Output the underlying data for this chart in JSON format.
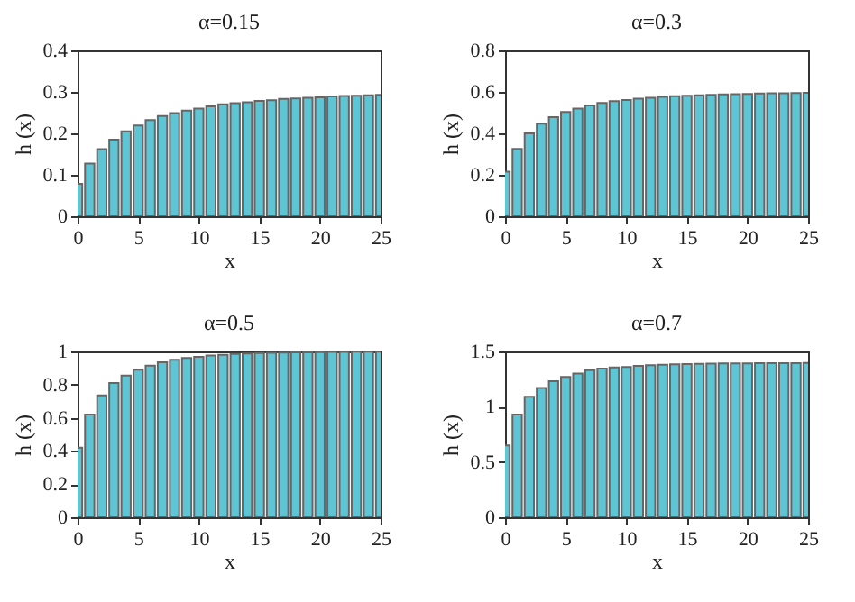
{
  "chart_data": [
    {
      "type": "bar",
      "title": "α=0.15",
      "xlabel": "x",
      "ylabel": "h (x)",
      "x": [
        0,
        1,
        2,
        3,
        4,
        5,
        6,
        7,
        8,
        9,
        10,
        11,
        12,
        13,
        14,
        15,
        16,
        17,
        18,
        19,
        20,
        21,
        22,
        23,
        24,
        25
      ],
      "values": [
        0.078,
        0.127,
        0.162,
        0.185,
        0.205,
        0.219,
        0.232,
        0.242,
        0.249,
        0.255,
        0.26,
        0.265,
        0.27,
        0.273,
        0.275,
        0.278,
        0.28,
        0.283,
        0.284,
        0.286,
        0.287,
        0.289,
        0.29,
        0.291,
        0.292,
        0.293
      ],
      "color": "#5ec5d5",
      "xlim": [
        0,
        25
      ],
      "xticks": [
        0,
        5,
        10,
        15,
        20,
        25
      ],
      "ylim": [
        0,
        0.4
      ],
      "yticks": [
        0,
        0.1,
        0.2,
        0.3,
        0.4
      ]
    },
    {
      "type": "bar",
      "title": "α=0.3",
      "xlabel": "x",
      "ylabel": "h (x)",
      "x": [
        0,
        1,
        2,
        3,
        4,
        5,
        6,
        7,
        8,
        9,
        10,
        11,
        12,
        13,
        14,
        15,
        16,
        17,
        18,
        19,
        20,
        21,
        22,
        23,
        24,
        25
      ],
      "values": [
        0.215,
        0.325,
        0.4,
        0.447,
        0.478,
        0.503,
        0.52,
        0.535,
        0.547,
        0.555,
        0.561,
        0.567,
        0.572,
        0.576,
        0.579,
        0.582,
        0.584,
        0.586,
        0.588,
        0.589,
        0.59,
        0.592,
        0.593,
        0.594,
        0.595,
        0.596
      ],
      "color": "#5ec5d5",
      "xlim": [
        0,
        25
      ],
      "xticks": [
        0,
        5,
        10,
        15,
        20,
        25
      ],
      "ylim": [
        0,
        0.8
      ],
      "yticks": [
        0,
        0.2,
        0.4,
        0.6,
        0.8
      ]
    },
    {
      "type": "bar",
      "title": "α=0.5",
      "xlabel": "x",
      "ylabel": "h (x)",
      "x": [
        0,
        1,
        2,
        3,
        4,
        5,
        6,
        7,
        8,
        9,
        10,
        11,
        12,
        13,
        14,
        15,
        16,
        17,
        18,
        19,
        20,
        21,
        22,
        23,
        24,
        25
      ],
      "values": [
        0.42,
        0.62,
        0.735,
        0.81,
        0.855,
        0.89,
        0.915,
        0.935,
        0.95,
        0.96,
        0.968,
        0.975,
        0.98,
        0.985,
        0.988,
        0.99,
        0.992,
        0.993,
        0.994,
        0.995,
        0.996,
        0.997,
        0.997,
        0.998,
        0.998,
        0.999
      ],
      "color": "#5ec5d5",
      "xlim": [
        0,
        25
      ],
      "xticks": [
        0,
        5,
        10,
        15,
        20,
        25
      ],
      "ylim": [
        0,
        1
      ],
      "yticks": [
        0,
        0.2,
        0.4,
        0.6,
        0.8,
        1
      ]
    },
    {
      "type": "bar",
      "title": "α=0.7",
      "xlabel": "x",
      "ylabel": "h (x)",
      "x": [
        0,
        1,
        2,
        3,
        4,
        5,
        6,
        7,
        8,
        9,
        10,
        11,
        12,
        13,
        14,
        15,
        16,
        17,
        18,
        19,
        20,
        21,
        22,
        23,
        24,
        25
      ],
      "values": [
        0.65,
        0.93,
        1.09,
        1.17,
        1.23,
        1.27,
        1.3,
        1.33,
        1.345,
        1.355,
        1.36,
        1.37,
        1.375,
        1.38,
        1.383,
        1.386,
        1.388,
        1.39,
        1.391,
        1.392,
        1.393,
        1.394,
        1.394,
        1.395,
        1.395,
        1.396
      ],
      "color": "#5ec5d5",
      "xlim": [
        0,
        25
      ],
      "xticks": [
        0,
        5,
        10,
        15,
        20,
        25
      ],
      "ylim": [
        0,
        1.5
      ],
      "yticks": [
        0,
        0.5,
        1,
        1.5
      ]
    }
  ]
}
